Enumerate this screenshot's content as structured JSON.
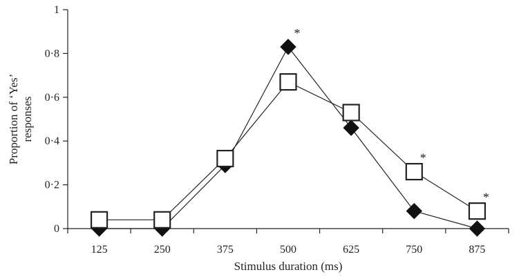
{
  "chart_data": {
    "type": "line",
    "title": "",
    "xlabel": "Stimulus duration (ms)",
    "ylabel_lines": [
      "Proportion of ‘Yes’",
      "responses"
    ],
    "x": [
      125,
      250,
      375,
      500,
      625,
      750,
      875
    ],
    "x_tick_labels": [
      "125",
      "250",
      "375",
      "500",
      "625",
      "750",
      "875"
    ],
    "ylim": [
      0,
      1
    ],
    "y_ticks": [
      0,
      0.2,
      0.4,
      0.6,
      0.8,
      1
    ],
    "y_tick_labels": [
      "0",
      "0·2",
      "0·4",
      "0·6",
      "0·8",
      "1"
    ],
    "grid": false,
    "legend": "none",
    "series": [
      {
        "marker": "filled-diamond",
        "color": "#111111",
        "values": [
          0.0,
          0.0,
          0.29,
          0.83,
          0.46,
          0.08,
          0.0
        ]
      },
      {
        "marker": "open-square",
        "color": "#ffffff",
        "values": [
          0.04,
          0.04,
          0.32,
          0.67,
          0.53,
          0.26,
          0.08
        ]
      }
    ],
    "annotations": [
      {
        "text": "*",
        "x": 500,
        "y": 0.83
      },
      {
        "text": "*",
        "x": 750,
        "y": 0.26
      },
      {
        "text": "*",
        "x": 875,
        "y": 0.08
      }
    ]
  }
}
